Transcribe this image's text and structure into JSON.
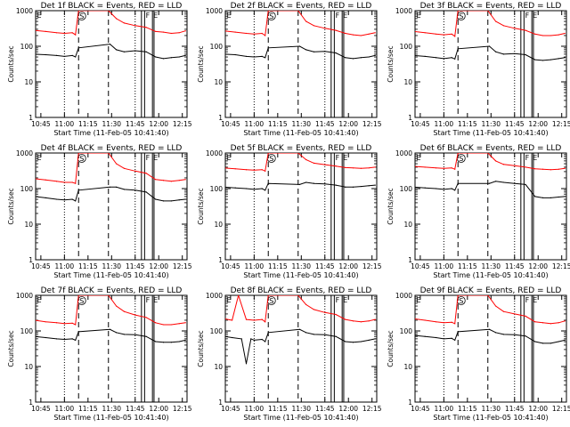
{
  "chart_data": {
    "type": "line",
    "layout": "3x3 grid of panels",
    "shared": {
      "ylabel": "Counts/sec",
      "xlabel": "Start Time (11-Feb-05 10:41:40)",
      "y_scale": "log",
      "ylim": [
        1,
        1000
      ],
      "y_ticks": [
        "1",
        "10",
        "100",
        "1000"
      ],
      "xlim": [
        "10:41:40",
        "12:18:00"
      ],
      "x_ticks": [
        "10:45",
        "11:00",
        "11:15",
        "11:30",
        "11:45",
        "12:00",
        "12:15"
      ],
      "series_colors": {
        "events": "#000000",
        "lld": "#ff0000"
      },
      "marker_labels": {
        "S": "S",
        "F": "F",
        "E": "E"
      },
      "markers": {
        "dotted_lines": [
          "11:00",
          "11:45"
        ],
        "dashed_lines": [
          "11:09",
          "11:28"
        ],
        "solid_lines": [
          "11:49",
          "11:51",
          "11:56",
          "11:57"
        ],
        "circle_S_at": "11:11",
        "F_at": "11:53",
        "E_at": "11:58"
      }
    },
    "panels": [
      {
        "title": "Det 1f BLACK = Events, RED = LLD",
        "series": [
          {
            "name": "events",
            "x": [
              "10:41",
              "10:48",
              "10:55",
              "11:00",
              "11:05",
              "11:07",
              "11:09",
              "11:29",
              "11:33",
              "11:38",
              "11:45",
              "11:52",
              "11:58",
              "12:03",
              "12:08",
              "12:13",
              "12:17"
            ],
            "y": [
              60,
              58,
              55,
              52,
              55,
              50,
              90,
              115,
              80,
              70,
              75,
              70,
              50,
              45,
              48,
              50,
              55
            ]
          },
          {
            "name": "lld",
            "x": [
              "10:41",
              "10:48",
              "10:55",
              "11:00",
              "11:05",
              "11:07",
              "11:09",
              "11:28",
              "11:33",
              "11:38",
              "11:45",
              "11:52",
              "11:58",
              "12:03",
              "12:08",
              "12:13",
              "12:17"
            ],
            "y": [
              280,
              260,
              240,
              230,
              240,
              210,
              1000,
              1000,
              600,
              450,
              380,
              340,
              260,
              250,
              230,
              240,
              270
            ]
          }
        ]
      },
      {
        "title": "Det 2f BLACK = Events, RED = LLD",
        "series": [
          {
            "name": "events",
            "x": [
              "10:41",
              "10:48",
              "10:55",
              "11:00",
              "11:05",
              "11:07",
              "11:09",
              "11:29",
              "11:33",
              "11:38",
              "11:45",
              "11:52",
              "11:58",
              "12:03",
              "12:08",
              "12:13",
              "12:17"
            ],
            "y": [
              60,
              58,
              52,
              50,
              52,
              48,
              90,
              100,
              80,
              70,
              72,
              65,
              48,
              45,
              48,
              50,
              55
            ]
          },
          {
            "name": "lld",
            "x": [
              "10:41",
              "10:48",
              "10:55",
              "11:00",
              "11:05",
              "11:07",
              "11:09",
              "11:28",
              "11:33",
              "11:38",
              "11:45",
              "11:52",
              "11:58",
              "12:03",
              "12:08",
              "12:13",
              "12:17"
            ],
            "y": [
              270,
              250,
              230,
              220,
              230,
              200,
              1000,
              1000,
              500,
              380,
              320,
              280,
              230,
              210,
              200,
              220,
              240
            ]
          }
        ]
      },
      {
        "title": "Det 3f BLACK = Events, RED = LLD",
        "series": [
          {
            "name": "events",
            "x": [
              "10:41",
              "10:48",
              "10:55",
              "11:00",
              "11:05",
              "11:07",
              "11:09",
              "11:29",
              "11:33",
              "11:38",
              "11:45",
              "11:52",
              "11:58",
              "12:03",
              "12:08",
              "12:13",
              "12:17"
            ],
            "y": [
              55,
              52,
              48,
              45,
              48,
              44,
              85,
              100,
              70,
              60,
              62,
              58,
              42,
              40,
              42,
              45,
              48
            ]
          },
          {
            "name": "lld",
            "x": [
              "10:41",
              "10:48",
              "10:55",
              "11:00",
              "11:05",
              "11:07",
              "11:09",
              "11:28",
              "11:33",
              "11:38",
              "11:45",
              "11:52",
              "11:58",
              "12:03",
              "12:08",
              "12:13",
              "12:17"
            ],
            "y": [
              260,
              240,
              220,
              210,
              220,
              190,
              1000,
              1000,
              500,
              380,
              320,
              280,
              220,
              200,
              200,
              210,
              230
            ]
          }
        ]
      },
      {
        "title": "Det 4f BLACK = Events, RED = LLD",
        "series": [
          {
            "name": "events",
            "x": [
              "10:41",
              "10:48",
              "10:55",
              "11:00",
              "11:05",
              "11:07",
              "11:09",
              "11:29",
              "11:33",
              "11:38",
              "11:45",
              "11:52",
              "11:58",
              "12:03",
              "12:08",
              "12:13",
              "12:17"
            ],
            "y": [
              60,
              55,
              50,
              48,
              50,
              45,
              90,
              110,
              110,
              95,
              90,
              80,
              50,
              45,
              45,
              48,
              50
            ]
          },
          {
            "name": "lld",
            "x": [
              "10:41",
              "10:48",
              "10:55",
              "11:00",
              "11:05",
              "11:07",
              "11:09",
              "11:28",
              "11:33",
              "11:38",
              "11:45",
              "11:52",
              "11:58",
              "12:03",
              "12:08",
              "12:13",
              "12:17"
            ],
            "y": [
              190,
              175,
              160,
              150,
              150,
              140,
              1000,
              1000,
              500,
              370,
              310,
              270,
              180,
              170,
              160,
              170,
              180
            ]
          }
        ]
      },
      {
        "title": "Det 5f BLACK = Events, RED = LLD",
        "series": [
          {
            "name": "events",
            "x": [
              "10:41",
              "10:48",
              "10:55",
              "11:00",
              "11:05",
              "11:07",
              "11:09",
              "11:29",
              "11:33",
              "11:38",
              "11:45",
              "11:52",
              "11:58",
              "12:03",
              "12:08",
              "12:13",
              "12:17"
            ],
            "y": [
              110,
              105,
              100,
              95,
              100,
              90,
              140,
              130,
              150,
              140,
              135,
              125,
              110,
              110,
              115,
              120,
              125
            ]
          },
          {
            "name": "lld",
            "x": [
              "10:41",
              "10:48",
              "10:55",
              "11:00",
              "11:05",
              "11:07",
              "11:09",
              "11:28",
              "11:33",
              "11:38",
              "11:45",
              "11:52",
              "11:58",
              "12:03",
              "12:08",
              "12:13",
              "12:17"
            ],
            "y": [
              380,
              360,
              340,
              330,
              340,
              310,
              1000,
              1000,
              650,
              520,
              470,
              430,
              390,
              380,
              370,
              380,
              400
            ]
          }
        ]
      },
      {
        "title": "Det 6f BLACK = Events, RED = LLD",
        "series": [
          {
            "name": "events",
            "x": [
              "10:41",
              "10:48",
              "10:55",
              "11:00",
              "11:05",
              "11:07",
              "11:09",
              "11:29",
              "11:33",
              "11:38",
              "11:45",
              "11:52",
              "11:58",
              "12:03",
              "12:08",
              "12:13",
              "12:17"
            ],
            "y": [
              110,
              105,
              100,
              95,
              100,
              90,
              140,
              140,
              160,
              150,
              140,
              130,
              60,
              55,
              55,
              58,
              60
            ]
          },
          {
            "name": "lld",
            "x": [
              "10:41",
              "10:48",
              "10:55",
              "11:00",
              "11:05",
              "11:07",
              "11:09",
              "11:28",
              "11:33",
              "11:38",
              "11:45",
              "11:52",
              "11:58",
              "12:03",
              "12:08",
              "12:13",
              "12:17"
            ],
            "y": [
              420,
              400,
              380,
              370,
              380,
              350,
              1000,
              1000,
              600,
              480,
              440,
              400,
              360,
              350,
              340,
              350,
              370
            ]
          }
        ]
      },
      {
        "title": "Det 7f BLACK = Events, RED = LLD",
        "series": [
          {
            "name": "events",
            "x": [
              "10:41",
              "10:48",
              "10:55",
              "11:00",
              "11:05",
              "11:07",
              "11:09",
              "11:29",
              "11:33",
              "11:38",
              "11:45",
              "11:52",
              "11:58",
              "12:03",
              "12:08",
              "12:13",
              "12:17"
            ],
            "y": [
              70,
              65,
              60,
              58,
              60,
              55,
              95,
              110,
              90,
              80,
              78,
              70,
              50,
              48,
              48,
              50,
              55
            ]
          },
          {
            "name": "lld",
            "x": [
              "10:41",
              "10:48",
              "10:55",
              "11:00",
              "11:05",
              "11:07",
              "11:09",
              "11:28",
              "11:33",
              "11:38",
              "11:45",
              "11:52",
              "11:58",
              "12:03",
              "12:08",
              "12:13",
              "12:17"
            ],
            "y": [
              200,
              180,
              170,
              160,
              165,
              150,
              1000,
              1000,
              500,
              350,
              280,
              240,
              170,
              150,
              150,
              160,
              170
            ]
          }
        ]
      },
      {
        "title": "Det 8f BLACK = Events, RED = LLD",
        "series": [
          {
            "name": "events",
            "x": [
              "10:41",
              "10:46",
              "10:52",
              "10:55",
              "10:58",
              "11:00",
              "11:05",
              "11:07",
              "11:09",
              "11:29",
              "11:33",
              "11:38",
              "11:45",
              "11:52",
              "11:58",
              "12:03",
              "12:08",
              "12:13",
              "12:17"
            ],
            "y": [
              70,
              65,
              60,
              12,
              60,
              55,
              58,
              50,
              90,
              110,
              90,
              80,
              78,
              70,
              50,
              48,
              50,
              55,
              60
            ]
          },
          {
            "name": "lld",
            "x": [
              "10:41",
              "10:46",
              "10:50",
              "10:55",
              "11:00",
              "11:05",
              "11:07",
              "11:09",
              "11:28",
              "11:33",
              "11:38",
              "11:45",
              "11:52",
              "11:58",
              "12:03",
              "12:08",
              "12:13",
              "12:17"
            ],
            "y": [
              220,
              200,
              1000,
              210,
              200,
              210,
              180,
              1000,
              1000,
              550,
              400,
              330,
              290,
              210,
              190,
              180,
              190,
              210
            ]
          }
        ]
      },
      {
        "title": "Det 9f BLACK = Events, RED = LLD",
        "series": [
          {
            "name": "events",
            "x": [
              "10:41",
              "10:48",
              "10:55",
              "11:00",
              "11:05",
              "11:07",
              "11:09",
              "11:29",
              "11:33",
              "11:38",
              "11:45",
              "11:52",
              "11:58",
              "12:03",
              "12:08",
              "12:13",
              "12:17"
            ],
            "y": [
              75,
              70,
              65,
              60,
              62,
              55,
              95,
              110,
              90,
              80,
              78,
              72,
              50,
              45,
              45,
              50,
              55
            ]
          },
          {
            "name": "lld",
            "x": [
              "10:41",
              "10:48",
              "10:55",
              "11:00",
              "11:05",
              "11:07",
              "11:09",
              "11:28",
              "11:33",
              "11:38",
              "11:45",
              "11:52",
              "11:58",
              "12:03",
              "12:08",
              "12:13",
              "12:17"
            ],
            "y": [
              220,
              200,
              180,
              170,
              175,
              160,
              1000,
              1000,
              500,
              350,
              300,
              260,
              180,
              170,
              160,
              170,
              190
            ]
          }
        ]
      }
    ]
  }
}
